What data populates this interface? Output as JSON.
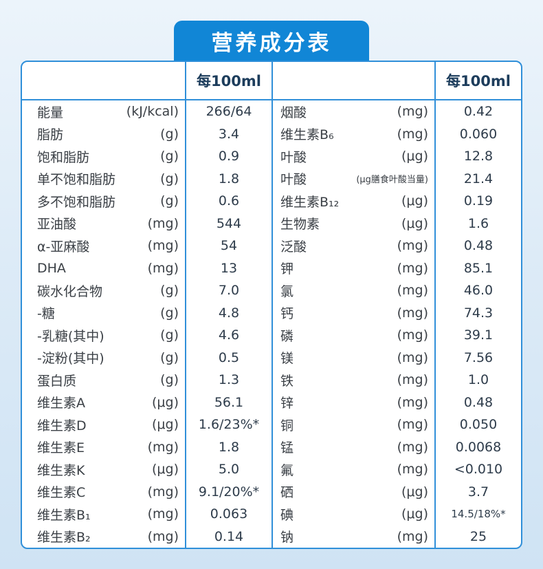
{
  "title": "营养成分表",
  "column_header": "每100ml",
  "colors": {
    "banner": "#1186d6",
    "line": "#2f8fd9",
    "header_text": "#1d3d5c"
  },
  "left_rows": [
    {
      "name": "能量",
      "unit": "(kJ/kcal)",
      "value": "266/64"
    },
    {
      "name": "脂肪",
      "unit": "(g)",
      "value": "3.4"
    },
    {
      "name": "饱和脂肪",
      "unit": "(g)",
      "value": "0.9"
    },
    {
      "name": "单不饱和脂肪",
      "unit": "(g)",
      "value": "1.8"
    },
    {
      "name": "多不饱和脂肪",
      "unit": "(g)",
      "value": "0.6"
    },
    {
      "name": "亚油酸",
      "unit": "(mg)",
      "value": "544"
    },
    {
      "name": "α-亚麻酸",
      "unit": "(mg)",
      "value": "54"
    },
    {
      "name": "DHA",
      "unit": "(mg)",
      "value": "13"
    },
    {
      "name": "碳水化合物",
      "unit": "(g)",
      "value": "7.0"
    },
    {
      "name": "-糖",
      "unit": "(g)",
      "value": "4.8"
    },
    {
      "name": "-乳糖(其中)",
      "unit": "(g)",
      "value": "4.6"
    },
    {
      "name": "-淀粉(其中)",
      "unit": "(g)",
      "value": "0.5"
    },
    {
      "name": "蛋白质",
      "unit": "(g)",
      "value": "1.3"
    },
    {
      "name": "维生素A",
      "unit": "(μg)",
      "value": "56.1"
    },
    {
      "name": "维生素D",
      "unit": "(μg)",
      "value": "1.6/23%*"
    },
    {
      "name": "维生素E",
      "unit": "(mg)",
      "value": "1.8"
    },
    {
      "name": "维生素K",
      "unit": "(μg)",
      "value": "5.0"
    },
    {
      "name": "维生素C",
      "unit": "(mg)",
      "value": "9.1/20%*"
    },
    {
      "name": "维生素B₁",
      "unit": "(mg)",
      "value": "0.063"
    },
    {
      "name": "维生素B₂",
      "unit": "(mg)",
      "value": "0.14"
    }
  ],
  "right_rows": [
    {
      "name": "烟酸",
      "unit": "(mg)",
      "value": "0.42"
    },
    {
      "name": "维生素B₆",
      "unit": "(mg)",
      "value": "0.060"
    },
    {
      "name": "叶酸",
      "unit": "(μg)",
      "value": "12.8"
    },
    {
      "name": "叶酸",
      "unit": "(μg膳食叶酸当量)",
      "value": "21.4"
    },
    {
      "name": "维生素B₁₂",
      "unit": "(μg)",
      "value": "0.19"
    },
    {
      "name": "生物素",
      "unit": "(μg)",
      "value": "1.6"
    },
    {
      "name": "泛酸",
      "unit": "(mg)",
      "value": "0.48"
    },
    {
      "name": "钾",
      "unit": "(mg)",
      "value": "85.1"
    },
    {
      "name": "氯",
      "unit": "(mg)",
      "value": "46.0"
    },
    {
      "name": "钙",
      "unit": "(mg)",
      "value": "74.3"
    },
    {
      "name": "磷",
      "unit": "(mg)",
      "value": "39.1"
    },
    {
      "name": "镁",
      "unit": "(mg)",
      "value": "7.56"
    },
    {
      "name": "铁",
      "unit": "(mg)",
      "value": "1.0"
    },
    {
      "name": "锌",
      "unit": "(mg)",
      "value": "0.48"
    },
    {
      "name": "铜",
      "unit": "(mg)",
      "value": "0.050"
    },
    {
      "name": "锰",
      "unit": "(mg)",
      "value": "0.0068"
    },
    {
      "name": "氟",
      "unit": "(mg)",
      "value": "<0.010"
    },
    {
      "name": "硒",
      "unit": "(μg)",
      "value": "3.7"
    },
    {
      "name": "碘",
      "unit": "(μg)",
      "value": "14.5/18%*"
    },
    {
      "name": "钠",
      "unit": "(mg)",
      "value": "25"
    }
  ]
}
